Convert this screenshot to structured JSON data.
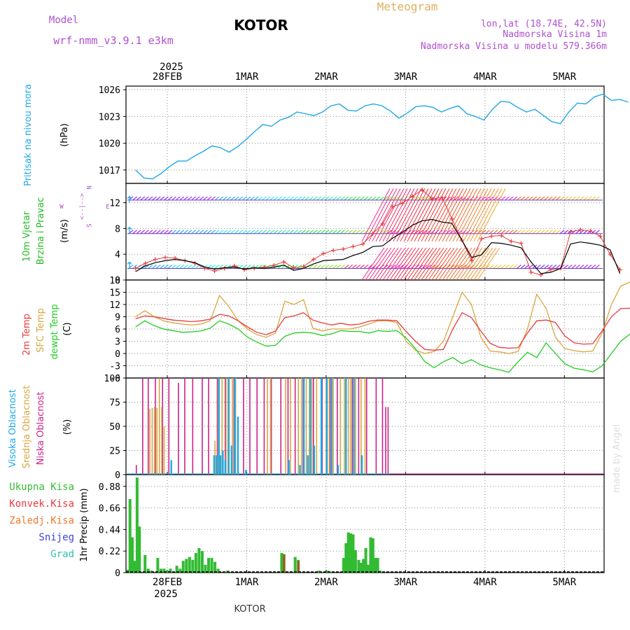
{
  "header": {
    "model_label": "Model",
    "model_name": "wrf-nmm_v3.9.1 e3km",
    "city": "KOTOR",
    "product": "Meteogram",
    "coords": "lon,lat (18.74E, 42.5N)",
    "elevation": "Nadmorska Visina 1m",
    "model_elevation": "Nadmorska Visina u modelu 579.366m"
  },
  "footer": {
    "city": "KOTOR"
  },
  "watermark": "made by Angel",
  "colors": {
    "pressure": "#1ea8e8",
    "wind_speed": "#000000",
    "gust": "#e83c3c",
    "t2m": "#e83c3c",
    "sfc": "#d9a640",
    "dew": "#22cc22",
    "cloud_high": "#1ea8e8",
    "cloud_mid": "#d9a640",
    "cloud_low": "#cc2288",
    "precip_total": "#33bb33",
    "precip_conv": "#e83c3c",
    "precip_frz": "#f07830",
    "precip_snow": "#4040dd",
    "precip_grad": "#33c0b0",
    "purple": "#b04fd0"
  },
  "chart_data": [
    {
      "type": "line",
      "panel": "pressure",
      "ylabel_main": "Pritisak na nivou mora",
      "ylabel_unit": "(hPa)",
      "yticks": [
        1017,
        1020,
        1023,
        1026
      ],
      "ylim": [
        1015.5,
        1026.4
      ],
      "x_day_start": 0,
      "series": [
        {
          "name": "MSLP",
          "values": [
            1017.0,
            1016.1,
            1016.0,
            1016.6,
            1017.4,
            1018.0,
            1018.0,
            1018.6,
            1019.1,
            1019.7,
            1019.5,
            1019.0,
            1019.6,
            1020.4,
            1021.3,
            1022.1,
            1021.9,
            1022.6,
            1022.9,
            1023.5,
            1023.3,
            1023.1,
            1023.5,
            1024.2,
            1024.4,
            1023.7,
            1023.6,
            1024.2,
            1024.4,
            1024.2,
            1023.6,
            1022.8,
            1023.4,
            1024.1,
            1024.2,
            1024.0,
            1023.5,
            1023.9,
            1024.2,
            1023.3,
            1023.0,
            1022.6,
            1023.8,
            1024.7,
            1024.6,
            1024.0,
            1023.5,
            1023.8,
            1023.1,
            1022.4,
            1022.2,
            1023.5,
            1024.5,
            1024.4,
            1025.2,
            1025.5,
            1024.8,
            1024.9,
            1024.6
          ]
        }
      ],
      "x_start_day": -0.4,
      "x_step_days": 0.107
    },
    {
      "type": "line",
      "panel": "wind",
      "ylabel_main": "10m Vjetar",
      "ylabel_main2": "Brzina i Pravac",
      "ylabel_unit": "(m/s)",
      "compass": [
        "N",
        "W",
        "E",
        "S"
      ],
      "compass_arrows": "<--|-->",
      "yticks": [
        0,
        4,
        8,
        12
      ],
      "ylim": [
        0,
        15
      ],
      "series": [
        {
          "name": "Wind speed",
          "values": [
            1.3,
            2.2,
            2.7,
            3.0,
            3.2,
            3.0,
            2.7,
            2.0,
            1.7,
            1.9,
            2.0,
            1.7,
            1.9,
            1.8,
            2.0,
            2.3,
            1.5,
            1.8,
            2.5,
            3.0,
            3.1,
            3.2,
            3.8,
            4.3,
            5.2,
            5.3,
            6.5,
            7.4,
            8.5,
            9.2,
            9.4,
            9.0,
            8.8,
            6.2,
            3.5,
            3.9,
            5.8,
            5.7,
            5.4,
            5.0,
            2.8,
            1.0,
            1.2,
            1.8,
            5.6,
            5.9,
            5.7,
            5.4,
            4.7,
            1.0
          ]
        },
        {
          "name": "Gust",
          "values": [
            1.8,
            2.6,
            3.2,
            3.5,
            3.4,
            3.0,
            2.6,
            1.8,
            1.4,
            1.8,
            2.2,
            1.6,
            1.8,
            2.0,
            2.3,
            2.8,
            1.9,
            2.1,
            3.2,
            4.1,
            4.6,
            4.8,
            5.2,
            5.6,
            7.2,
            8.7,
            11.4,
            11.9,
            13.0,
            14.0,
            12.6,
            12.8,
            9.5,
            6.2,
            3.0,
            6.4,
            6.8,
            6.9,
            6.0,
            5.7,
            1.2,
            0.8,
            1.6,
            1.8,
            7.5,
            7.8,
            7.6,
            6.8,
            4.0,
            1.6
          ]
        }
      ],
      "x_start_day": -0.4,
      "x_step_days": 0.1245
    },
    {
      "type": "line",
      "panel": "temperature",
      "ylabel_main": "2m Temp",
      "ylabel_main2": "SFC Temp",
      "ylabel_main3": "dewpt Temp",
      "ylabel_unit": "(C)",
      "yticks": [
        -6,
        -3,
        0,
        3,
        6,
        9,
        12,
        15,
        18
      ],
      "ylim": [
        -6,
        18
      ],
      "series": [
        {
          "name": "2m Temp",
          "values": [
            8.5,
            9.2,
            9.0,
            8.6,
            8.2,
            8.0,
            7.8,
            8.0,
            8.4,
            9.6,
            9.2,
            8.0,
            6.5,
            5.2,
            4.6,
            5.5,
            8.8,
            9.2,
            10.0,
            8.2,
            7.5,
            7.0,
            7.4,
            7.0,
            7.2,
            7.9,
            8.2,
            8.2,
            8.0,
            5.4,
            3.0,
            1.0,
            0.8,
            1.0,
            6.0,
            10.0,
            8.8,
            5.5,
            2.5,
            1.5,
            1.3,
            1.4,
            5.0,
            8.0,
            8.2,
            7.6,
            4.3,
            2.6,
            2.3,
            2.4,
            5.5,
            9.0,
            11.0,
            11.1
          ]
        },
        {
          "name": "SFC Temp",
          "values": [
            9.0,
            10.5,
            9.0,
            8.0,
            7.5,
            7.2,
            7.0,
            7.2,
            8.0,
            14.2,
            11.5,
            8.0,
            6.0,
            4.6,
            4.0,
            5.0,
            12.8,
            12.0,
            13.2,
            6.2,
            5.5,
            6.0,
            6.0,
            6.0,
            6.5,
            7.2,
            8.0,
            8.0,
            7.6,
            3.0,
            0.8,
            0.0,
            0.5,
            3.0,
            9.0,
            15.0,
            12.0,
            4.0,
            0.6,
            0.4,
            0.0,
            0.5,
            6.0,
            14.5,
            11.0,
            4.0,
            1.2,
            0.7,
            0.4,
            0.6,
            5.0,
            12.0,
            16.5,
            17.5
          ]
        },
        {
          "name": "dewpt Temp",
          "values": [
            6.5,
            8.0,
            6.8,
            6.0,
            5.6,
            5.2,
            5.3,
            5.5,
            6.2,
            8.0,
            7.2,
            6.0,
            4.0,
            2.8,
            1.8,
            2.0,
            4.2,
            5.0,
            5.2,
            5.0,
            4.4,
            4.8,
            5.6,
            5.4,
            5.4,
            5.0,
            5.6,
            5.4,
            5.6,
            3.8,
            1.2,
            -2.0,
            -3.5,
            -2.0,
            -1.0,
            -2.5,
            -1.5,
            -2.8,
            -3.5,
            -4.0,
            -4.6,
            -2.0,
            0.3,
            -1.0,
            2.6,
            0.0,
            -2.5,
            -3.6,
            -4.0,
            -4.5,
            -3.0,
            0.0,
            3.0,
            4.8
          ]
        }
      ],
      "x_start_day": -0.4,
      "x_step_days": 0.1175
    },
    {
      "type": "bar",
      "panel": "clouds",
      "ylabel_main": "Visoka Oblacnost",
      "ylabel_main2": "Srednja Oblacnost",
      "ylabel_main3": "Niska Oblacnost",
      "ylabel_unit": "(%)",
      "yticks": [
        0,
        25,
        50,
        75,
        100
      ],
      "ylim": [
        0,
        100
      ],
      "series": [
        {
          "name": "Niska",
          "x": [
            -0.39,
            -0.31,
            -0.24,
            -0.15,
            -0.06,
            0.02,
            0.14,
            0.22,
            0.32,
            0.44,
            0.52,
            0.63,
            0.73,
            0.84,
            0.96,
            1.04,
            1.13,
            1.22,
            1.31,
            1.43,
            1.52,
            1.61,
            1.71,
            1.84,
            1.95,
            2.05,
            2.14,
            2.25,
            2.33,
            2.41,
            2.51,
            2.63,
            2.71,
            2.75,
            2.78
          ],
          "values": [
            10,
            100,
            100,
            100,
            100,
            100,
            95,
            100,
            100,
            100,
            100,
            100,
            100,
            100,
            100,
            100,
            100,
            100,
            100,
            100,
            100,
            100,
            100,
            100,
            100,
            100,
            100,
            100,
            100,
            100,
            100,
            100,
            100,
            70,
            70
          ]
        },
        {
          "name": "Srednja",
          "x": [
            -0.22,
            -0.19,
            -0.16,
            -0.13,
            -0.1,
            -0.07,
            -0.04,
            0.6,
            0.64,
            0.69,
            0.74,
            0.78,
            0.82,
            0.86,
            1.26,
            1.3,
            1.49,
            1.55,
            1.65,
            1.69,
            1.72,
            1.75,
            1.79,
            1.82,
            1.88,
            2.0,
            2.04,
            2.09,
            2.18,
            2.23,
            2.28,
            2.31,
            2.37,
            2.44,
            2.49
          ],
          "values": [
            68,
            69,
            70,
            69,
            100,
            70,
            50,
            35,
            100,
            100,
            100,
            100,
            100,
            100,
            100,
            100,
            100,
            100,
            100,
            100,
            100,
            100,
            100,
            100,
            100,
            100,
            100,
            100,
            100,
            100,
            100,
            100,
            100,
            100,
            100
          ]
        },
        {
          "name": "Visoka",
          "x": [
            0.05,
            0.59,
            0.62,
            0.65,
            0.67,
            0.7,
            0.73,
            0.77,
            0.81,
            0.85,
            0.89,
            0.99,
            1.53,
            1.67,
            1.72,
            1.77,
            1.8,
            1.85,
            1.94,
            2.01,
            2.07,
            2.15,
            2.25,
            2.35,
            2.45
          ],
          "values": [
            15,
            20,
            20,
            100,
            20,
            25,
            15,
            100,
            30,
            100,
            60,
            5,
            15,
            10,
            100,
            20,
            100,
            30,
            100,
            100,
            100,
            10,
            100,
            100,
            20
          ]
        }
      ]
    },
    {
      "type": "bar",
      "panel": "precipitation",
      "legend": [
        "Ukupna Kisa",
        "Konvek.Kisa",
        "Zaledj.Kisa",
        "Snijeg",
        "Grad"
      ],
      "ylabel_unit": "1hr Precip (mm)",
      "yticks": [
        0,
        0.22,
        0.44,
        0.66,
        0.88
      ],
      "ylim": [
        0,
        1.0
      ],
      "series": [
        {
          "name": "Ukupna Kisa",
          "x": [
            -0.5,
            -0.47,
            -0.44,
            -0.41,
            -0.38,
            -0.35,
            -0.28,
            -0.24,
            -0.2,
            -0.16,
            -0.12,
            -0.08,
            -0.04,
            0.0,
            0.04,
            0.08,
            0.12,
            0.16,
            0.2,
            0.24,
            0.28,
            0.32,
            0.36,
            0.4,
            0.44,
            0.48,
            0.52,
            0.56,
            0.6,
            0.64,
            0.68,
            0.72,
            0.76,
            1.44,
            1.47,
            1.61,
            1.65,
            1.91,
            1.94,
            2.02,
            2.05,
            2.22,
            2.25,
            2.28,
            2.31,
            2.34,
            2.37,
            2.41,
            2.44,
            2.47,
            2.5,
            2.53,
            2.56,
            2.59,
            2.62,
            2.65,
            2.68
          ],
          "values": [
            0.03,
            0.75,
            0.36,
            0.12,
            0.97,
            0.47,
            0.18,
            0.04,
            0.02,
            0.0,
            0.15,
            0.04,
            0.04,
            0.02,
            0.04,
            0.0,
            0.07,
            0.04,
            0.12,
            0.14,
            0.16,
            0.13,
            0.2,
            0.25,
            0.22,
            0.08,
            0.15,
            0.15,
            0.11,
            0.04,
            0.0,
            0.01,
            0.02,
            0.2,
            0.19,
            0.16,
            0.13,
            0.02,
            0.01,
            0.02,
            0.01,
            0.15,
            0.3,
            0.41,
            0.4,
            0.39,
            0.23,
            0.13,
            0.1,
            0.14,
            0.25,
            0.08,
            0.36,
            0.35,
            0.15,
            0.15,
            0.02
          ]
        },
        {
          "name": "Konvek.Kisa",
          "x": [
            1.47,
            1.65
          ],
          "values": [
            0.18,
            0.12
          ]
        },
        {
          "name": "Snijeg",
          "x": [],
          "values": []
        }
      ]
    }
  ],
  "x_axis": {
    "top_labels": [
      "28FEB",
      "1MAR",
      "2MAR",
      "3MAR",
      "4MAR",
      "5MAR"
    ],
    "bottom_labels": [
      "28FEB",
      "1MAR",
      "2MAR",
      "3MAR",
      "4MAR",
      "5MAR"
    ],
    "year": "2025",
    "xlim_days": [
      -0.52,
      5.5
    ]
  }
}
